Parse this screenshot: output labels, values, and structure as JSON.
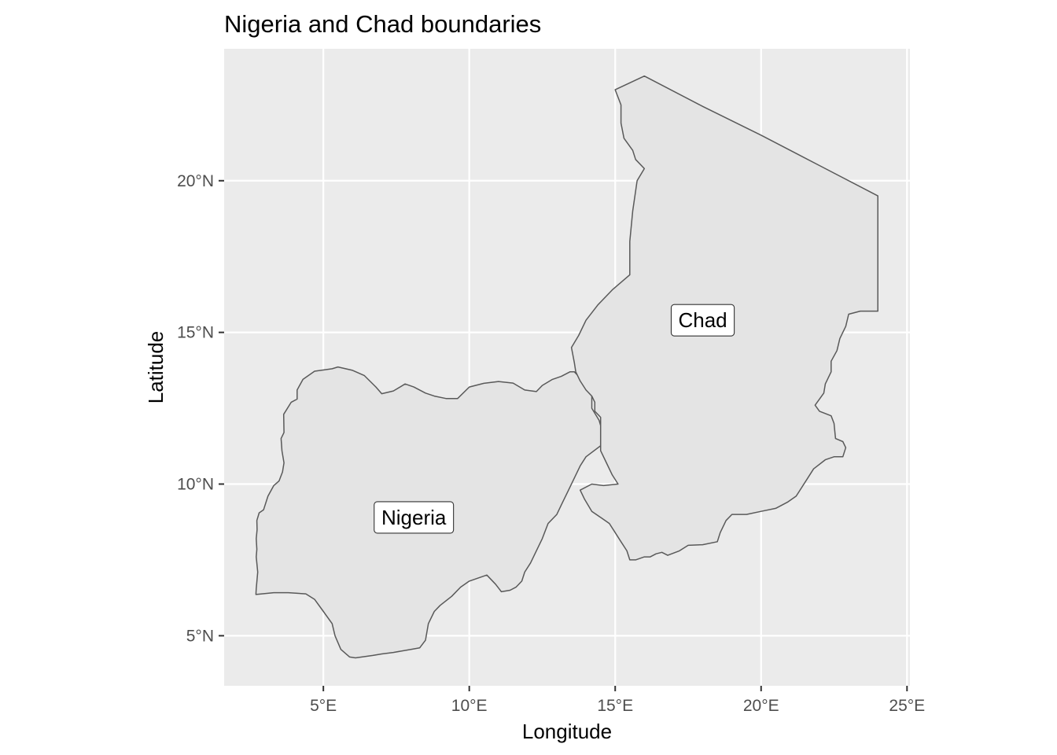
{
  "title": "Nigeria and Chad boundaries",
  "x_axis": {
    "label": "Longitude",
    "range": [
      1.6,
      25.1
    ],
    "ticks": [
      {
        "value": 5,
        "label": "5°E"
      },
      {
        "value": 10,
        "label": "10°E"
      },
      {
        "value": 15,
        "label": "15°E"
      },
      {
        "value": 20,
        "label": "20°E"
      },
      {
        "value": 25,
        "label": "25°E"
      }
    ]
  },
  "y_axis": {
    "label": "Latitude",
    "range": [
      3.35,
      24.35
    ],
    "ticks": [
      {
        "value": 5,
        "label": "5°N"
      },
      {
        "value": 10,
        "label": "10°N"
      },
      {
        "value": 15,
        "label": "15°N"
      },
      {
        "value": 20,
        "label": "20°N"
      }
    ]
  },
  "colors": {
    "panel_background": "#ebebeb",
    "grid": "#ffffff",
    "country_fill": "#e4e4e4",
    "country_border": "#595959"
  },
  "countries": [
    {
      "name": "Nigeria",
      "label_position": [
        8.1,
        8.9
      ],
      "boundary": [
        [
          2.69,
          6.36
        ],
        [
          2.7,
          6.55
        ],
        [
          2.75,
          7.1
        ],
        [
          2.7,
          7.6
        ],
        [
          2.72,
          7.85
        ],
        [
          2.7,
          8.2
        ],
        [
          2.73,
          8.5
        ],
        [
          2.72,
          8.8
        ],
        [
          2.8,
          9.05
        ],
        [
          2.95,
          9.15
        ],
        [
          3.1,
          9.6
        ],
        [
          3.3,
          9.95
        ],
        [
          3.48,
          10.1
        ],
        [
          3.6,
          10.4
        ],
        [
          3.65,
          10.7
        ],
        [
          3.58,
          11.1
        ],
        [
          3.55,
          11.5
        ],
        [
          3.65,
          11.7
        ],
        [
          3.64,
          12.3
        ],
        [
          3.9,
          12.7
        ],
        [
          4.1,
          12.8
        ],
        [
          4.1,
          13.1
        ],
        [
          4.3,
          13.45
        ],
        [
          4.7,
          13.72
        ],
        [
          5.3,
          13.8
        ],
        [
          5.5,
          13.86
        ],
        [
          6.0,
          13.75
        ],
        [
          6.4,
          13.58
        ],
        [
          6.8,
          13.2
        ],
        [
          7.0,
          12.98
        ],
        [
          7.4,
          13.07
        ],
        [
          7.8,
          13.3
        ],
        [
          8.1,
          13.2
        ],
        [
          8.5,
          13.0
        ],
        [
          8.8,
          12.9
        ],
        [
          9.2,
          12.82
        ],
        [
          9.6,
          12.82
        ],
        [
          10.0,
          13.2
        ],
        [
          10.5,
          13.32
        ],
        [
          11.0,
          13.38
        ],
        [
          11.5,
          13.33
        ],
        [
          11.9,
          13.1
        ],
        [
          12.3,
          13.05
        ],
        [
          12.5,
          13.25
        ],
        [
          12.85,
          13.45
        ],
        [
          13.15,
          13.55
        ],
        [
          13.45,
          13.7
        ],
        [
          13.6,
          13.7
        ],
        [
          13.8,
          13.5
        ],
        [
          14.0,
          13.25
        ],
        [
          14.2,
          12.9
        ],
        [
          14.2,
          12.5
        ],
        [
          14.45,
          12.1
        ],
        [
          14.6,
          11.6
        ],
        [
          14.55,
          11.3
        ],
        [
          14.0,
          10.9
        ],
        [
          13.8,
          10.6
        ],
        [
          13.6,
          10.2
        ],
        [
          13.4,
          9.8
        ],
        [
          13.2,
          9.4
        ],
        [
          13.0,
          9.0
        ],
        [
          12.7,
          8.7
        ],
        [
          12.5,
          8.2
        ],
        [
          12.3,
          7.8
        ],
        [
          12.1,
          7.4
        ],
        [
          11.9,
          7.1
        ],
        [
          11.8,
          6.8
        ],
        [
          11.6,
          6.6
        ],
        [
          11.4,
          6.5
        ],
        [
          11.1,
          6.45
        ],
        [
          10.9,
          6.7
        ],
        [
          10.6,
          7.0
        ],
        [
          10.3,
          6.9
        ],
        [
          10.0,
          6.8
        ],
        [
          9.7,
          6.6
        ],
        [
          9.4,
          6.3
        ],
        [
          9.0,
          6.0
        ],
        [
          8.8,
          5.8
        ],
        [
          8.6,
          5.4
        ],
        [
          8.5,
          4.85
        ],
        [
          8.3,
          4.6
        ],
        [
          8.0,
          4.55
        ],
        [
          7.4,
          4.45
        ],
        [
          7.0,
          4.4
        ],
        [
          6.7,
          4.35
        ],
        [
          6.1,
          4.27
        ],
        [
          5.9,
          4.3
        ],
        [
          5.6,
          4.55
        ],
        [
          5.4,
          5.0
        ],
        [
          5.3,
          5.4
        ],
        [
          5.0,
          5.8
        ],
        [
          4.7,
          6.2
        ],
        [
          4.4,
          6.38
        ],
        [
          3.8,
          6.42
        ],
        [
          3.3,
          6.42
        ],
        [
          2.69,
          6.36
        ]
      ]
    },
    {
      "name": "Chad",
      "label_position": [
        18.0,
        15.4
      ],
      "boundary": [
        [
          15.0,
          23.0
        ],
        [
          16.0,
          23.45
        ],
        [
          18.0,
          22.45
        ],
        [
          20.0,
          21.5
        ],
        [
          22.0,
          20.5
        ],
        [
          24.0,
          19.5
        ],
        [
          24.0,
          15.7
        ],
        [
          23.4,
          15.7
        ],
        [
          23.0,
          15.6
        ],
        [
          22.9,
          15.2
        ],
        [
          22.7,
          14.8
        ],
        [
          22.6,
          14.4
        ],
        [
          22.4,
          14.05
        ],
        [
          22.4,
          13.7
        ],
        [
          22.2,
          13.3
        ],
        [
          22.15,
          13.0
        ],
        [
          21.85,
          12.6
        ],
        [
          22.0,
          12.4
        ],
        [
          22.4,
          12.25
        ],
        [
          22.5,
          12.0
        ],
        [
          22.55,
          11.5
        ],
        [
          22.8,
          11.4
        ],
        [
          22.9,
          11.2
        ],
        [
          22.8,
          10.9
        ],
        [
          22.5,
          10.9
        ],
        [
          22.2,
          10.8
        ],
        [
          21.8,
          10.5
        ],
        [
          21.6,
          10.2
        ],
        [
          21.4,
          9.9
        ],
        [
          21.2,
          9.6
        ],
        [
          20.9,
          9.4
        ],
        [
          20.5,
          9.2
        ],
        [
          20.0,
          9.1
        ],
        [
          19.5,
          9.0
        ],
        [
          19.0,
          9.0
        ],
        [
          18.8,
          8.8
        ],
        [
          18.6,
          8.4
        ],
        [
          18.5,
          8.1
        ],
        [
          18.0,
          8.0
        ],
        [
          17.5,
          7.98
        ],
        [
          17.2,
          7.8
        ],
        [
          16.8,
          7.65
        ],
        [
          16.6,
          7.75
        ],
        [
          16.4,
          7.7
        ],
        [
          16.2,
          7.6
        ],
        [
          16.0,
          7.6
        ],
        [
          15.7,
          7.5
        ],
        [
          15.5,
          7.5
        ],
        [
          15.4,
          7.8
        ],
        [
          15.2,
          8.1
        ],
        [
          15.0,
          8.4
        ],
        [
          14.8,
          8.7
        ],
        [
          14.5,
          8.9
        ],
        [
          14.2,
          9.1
        ],
        [
          13.95,
          9.5
        ],
        [
          13.8,
          9.8
        ],
        [
          14.2,
          10.0
        ],
        [
          14.6,
          9.95
        ],
        [
          15.1,
          10.0
        ],
        [
          14.9,
          10.3
        ],
        [
          14.7,
          10.7
        ],
        [
          14.5,
          11.1
        ],
        [
          14.5,
          11.8
        ],
        [
          14.5,
          12.2
        ],
        [
          14.3,
          12.4
        ],
        [
          14.3,
          12.7
        ],
        [
          14.2,
          12.9
        ],
        [
          14.0,
          13.1
        ],
        [
          13.8,
          13.4
        ],
        [
          13.65,
          13.7
        ],
        [
          13.6,
          14.0
        ],
        [
          13.5,
          14.5
        ],
        [
          13.75,
          14.9
        ],
        [
          14.0,
          15.4
        ],
        [
          14.4,
          15.9
        ],
        [
          14.9,
          16.4
        ],
        [
          15.5,
          16.9
        ],
        [
          15.5,
          18.0
        ],
        [
          15.6,
          19.0
        ],
        [
          15.75,
          20.0
        ],
        [
          16.0,
          20.4
        ],
        [
          15.7,
          20.7
        ],
        [
          15.6,
          21.0
        ],
        [
          15.3,
          21.4
        ],
        [
          15.2,
          21.9
        ],
        [
          15.2,
          22.5
        ],
        [
          15.0,
          23.0
        ]
      ]
    }
  ]
}
